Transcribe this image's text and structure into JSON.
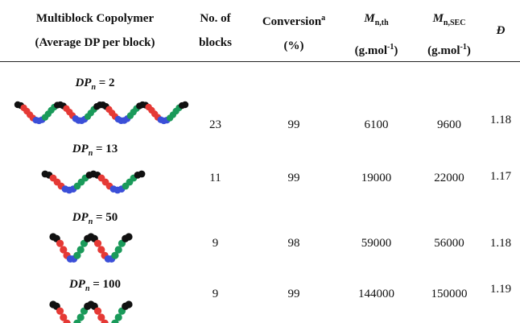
{
  "table": {
    "header": [
      {
        "line1": "Multiblock Copolymer",
        "line2": "(Average DP per block)"
      },
      {
        "line1": "No. of",
        "line2": "blocks"
      },
      {
        "line1": "Conversion",
        "sup": "a",
        "line2": "(%)"
      },
      {
        "symbol": "M",
        "sub": "n,th",
        "unit": "(g.mol",
        "unit_sup": "-1",
        "unit_end": ")"
      },
      {
        "symbol": "M",
        "sub": "n,SEC",
        "unit": "(g.mol",
        "unit_sup": "-1",
        "unit_end": ")"
      },
      {
        "symbol": "Đ"
      }
    ],
    "rows": [
      {
        "dp_symbol": "DP",
        "dp_sub": "n",
        "dp_text": "= 2",
        "cells": [
          "23",
          "99",
          "6100",
          "9600",
          "1.18"
        ]
      },
      {
        "dp_symbol": "DP",
        "dp_sub": "n",
        "dp_text": "= 13",
        "cells": [
          "11",
          "99",
          "19000",
          "22000",
          "1.17"
        ]
      },
      {
        "dp_symbol": "DP",
        "dp_sub": "n",
        "dp_text": "= 50",
        "cells": [
          "9",
          "98",
          "59000",
          "56000",
          "1.18"
        ]
      },
      {
        "dp_symbol": "DP",
        "dp_sub": "n",
        "dp_text": "= 100",
        "cells": [
          "9",
          "99",
          "144000",
          "150000",
          "1.19"
        ]
      }
    ]
  }
}
